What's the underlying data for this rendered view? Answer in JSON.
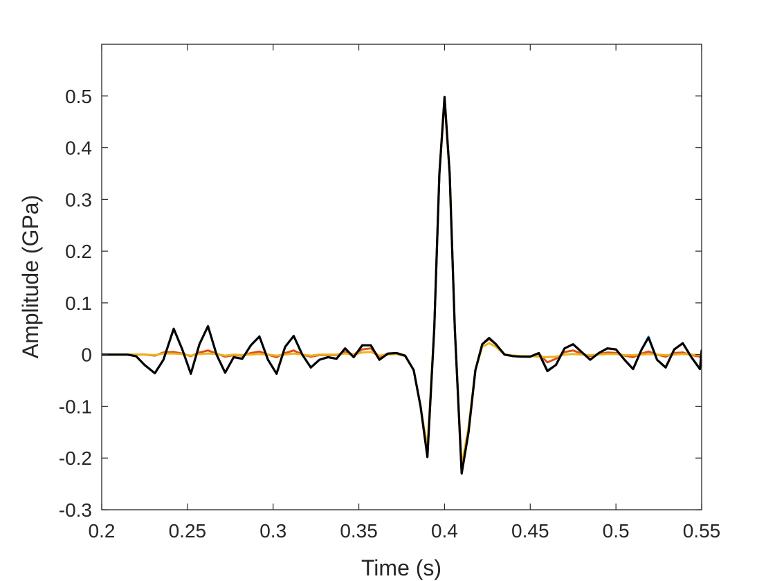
{
  "chart_data": {
    "type": "line",
    "title": "",
    "xlabel": "Time (s)",
    "ylabel": "Amplitude (GPa)",
    "xlim": [
      0.2,
      0.55
    ],
    "ylim": [
      -0.3,
      0.6
    ],
    "xticks": [
      0.2,
      0.25,
      0.3,
      0.35,
      0.4,
      0.45,
      0.5,
      0.55
    ],
    "xtick_labels": [
      "0.2",
      "0.25",
      "0.3",
      "0.35",
      "0.4",
      "0.45",
      "0.5",
      "0.55"
    ],
    "yticks": [
      -0.3,
      -0.2,
      -0.1,
      0,
      0.1,
      0.2,
      0.3,
      0.4,
      0.5
    ],
    "ytick_labels": [
      "-0.3",
      "-0.2",
      "-0.1",
      "0",
      "0.1",
      "0.2",
      "0.3",
      "0.4",
      "0.5"
    ],
    "grid": false,
    "legend": "none",
    "series": [
      {
        "color": "#4DBEEE",
        "x": [
          0.2,
          0.215,
          0.22,
          0.225,
          0.231,
          0.236,
          0.242,
          0.247,
          0.252,
          0.257,
          0.262,
          0.267,
          0.272,
          0.277,
          0.282,
          0.287,
          0.292,
          0.297,
          0.302,
          0.307,
          0.312,
          0.317,
          0.322,
          0.327,
          0.332,
          0.337,
          0.342,
          0.347,
          0.352,
          0.357,
          0.362,
          0.367,
          0.372,
          0.377,
          0.382,
          0.386,
          0.39,
          0.394,
          0.397,
          0.4,
          0.403,
          0.406,
          0.41,
          0.414,
          0.418,
          0.422,
          0.426,
          0.43,
          0.435,
          0.44,
          0.445,
          0.45,
          0.455,
          0.46,
          0.465,
          0.47,
          0.475,
          0.48,
          0.485,
          0.49,
          0.495,
          0.5,
          0.505,
          0.51,
          0.515,
          0.519,
          0.524,
          0.529,
          0.534,
          0.539,
          0.544,
          0.549,
          0.55
        ],
        "y": [
          0,
          0,
          -0.003,
          -0.02,
          -0.036,
          -0.01,
          0.05,
          0.01,
          -0.037,
          0.02,
          0.055,
          0.0,
          -0.035,
          -0.005,
          -0.008,
          0.018,
          0.035,
          -0.01,
          -0.037,
          0.015,
          0.036,
          0.0,
          -0.025,
          -0.01,
          -0.005,
          -0.008,
          0.012,
          -0.005,
          0.018,
          0.018,
          -0.01,
          0.002,
          0.003,
          -0.002,
          -0.03,
          -0.1,
          -0.195,
          0.05,
          0.35,
          0.497,
          0.35,
          0.05,
          -0.228,
          -0.15,
          -0.03,
          0.02,
          0.032,
          0.02,
          0.0,
          -0.003,
          -0.004,
          -0.004,
          0.003,
          -0.03,
          -0.02,
          0.012,
          0.02,
          0.005,
          -0.01,
          0.003,
          0.012,
          0.01,
          -0.01,
          -0.028,
          0.01,
          0.035,
          -0.01,
          -0.025,
          0.01,
          0.022,
          -0.005,
          -0.028,
          0.008
        ]
      },
      {
        "color": "#D95319",
        "x": [
          0.2,
          0.215,
          0.22,
          0.225,
          0.231,
          0.236,
          0.242,
          0.247,
          0.252,
          0.257,
          0.262,
          0.267,
          0.272,
          0.277,
          0.282,
          0.287,
          0.292,
          0.297,
          0.302,
          0.307,
          0.312,
          0.317,
          0.322,
          0.327,
          0.332,
          0.337,
          0.342,
          0.347,
          0.352,
          0.357,
          0.362,
          0.367,
          0.372,
          0.377,
          0.382,
          0.386,
          0.39,
          0.394,
          0.397,
          0.4,
          0.403,
          0.406,
          0.41,
          0.414,
          0.418,
          0.422,
          0.426,
          0.43,
          0.435,
          0.44,
          0.445,
          0.45,
          0.455,
          0.46,
          0.465,
          0.47,
          0.475,
          0.48,
          0.485,
          0.49,
          0.495,
          0.5,
          0.505,
          0.51,
          0.515,
          0.519,
          0.524,
          0.529,
          0.534,
          0.539,
          0.544,
          0.549,
          0.55
        ],
        "y": [
          0,
          0,
          0,
          0,
          -0.002,
          0.004,
          0.005,
          0.002,
          -0.003,
          0.004,
          0.008,
          0.002,
          -0.004,
          -0.001,
          -0.002,
          0.003,
          0.006,
          0.0,
          -0.005,
          0.003,
          0.008,
          0.0,
          -0.004,
          -0.001,
          -0.001,
          -0.001,
          0.005,
          0.0,
          0.01,
          0.012,
          -0.004,
          0.002,
          0.002,
          -0.002,
          -0.03,
          -0.1,
          -0.19,
          0.05,
          0.35,
          0.495,
          0.35,
          0.05,
          -0.225,
          -0.15,
          -0.03,
          0.02,
          0.03,
          0.02,
          0.0,
          -0.002,
          -0.003,
          -0.004,
          0.002,
          -0.015,
          -0.008,
          0.005,
          0.008,
          0.002,
          -0.003,
          0.001,
          0.004,
          0.003,
          -0.002,
          -0.005,
          0.002,
          0.006,
          0.0,
          -0.004,
          0.003,
          0.004,
          -0.001,
          -0.004,
          0.001
        ]
      },
      {
        "color": "#EDB120",
        "x": [
          0.2,
          0.215,
          0.22,
          0.225,
          0.231,
          0.236,
          0.242,
          0.247,
          0.252,
          0.257,
          0.262,
          0.267,
          0.272,
          0.277,
          0.282,
          0.287,
          0.292,
          0.297,
          0.302,
          0.307,
          0.312,
          0.317,
          0.322,
          0.327,
          0.332,
          0.337,
          0.342,
          0.347,
          0.352,
          0.357,
          0.362,
          0.367,
          0.372,
          0.377,
          0.382,
          0.386,
          0.39,
          0.394,
          0.397,
          0.4,
          0.403,
          0.406,
          0.41,
          0.414,
          0.418,
          0.422,
          0.426,
          0.43,
          0.435,
          0.44,
          0.445,
          0.45,
          0.455,
          0.46,
          0.465,
          0.47,
          0.475,
          0.48,
          0.485,
          0.49,
          0.495,
          0.5,
          0.505,
          0.51,
          0.515,
          0.519,
          0.524,
          0.529,
          0.534,
          0.539,
          0.544,
          0.549,
          0.55
        ],
        "y": [
          0,
          0,
          0,
          0,
          -0.001,
          0.002,
          0.002,
          0.001,
          -0.002,
          0.001,
          0.002,
          0.001,
          -0.002,
          0.0,
          -0.001,
          0.0,
          0.001,
          0.0,
          -0.002,
          0.0,
          0.002,
          0.0,
          -0.002,
          0.0,
          0.0,
          0.0,
          0.002,
          0.0,
          0.004,
          0.005,
          -0.002,
          0.0,
          0.001,
          -0.003,
          -0.03,
          -0.1,
          -0.18,
          0.05,
          0.35,
          0.49,
          0.35,
          0.05,
          -0.215,
          -0.14,
          -0.03,
          0.015,
          0.022,
          0.015,
          0.0,
          -0.002,
          -0.003,
          -0.003,
          -0.004,
          -0.005,
          -0.004,
          0.0,
          0.001,
          0.0,
          -0.001,
          0.0,
          0.001,
          0.001,
          -0.001,
          -0.001,
          0.0,
          0.001,
          0.0,
          -0.001,
          0.0,
          0.001,
          0.0,
          -0.001,
          0.0
        ]
      },
      {
        "color": "#000000",
        "x": [
          0.2,
          0.215,
          0.22,
          0.225,
          0.231,
          0.236,
          0.242,
          0.247,
          0.252,
          0.257,
          0.262,
          0.267,
          0.272,
          0.277,
          0.282,
          0.287,
          0.292,
          0.297,
          0.302,
          0.307,
          0.312,
          0.317,
          0.322,
          0.327,
          0.332,
          0.337,
          0.342,
          0.347,
          0.352,
          0.357,
          0.362,
          0.367,
          0.372,
          0.377,
          0.382,
          0.386,
          0.39,
          0.394,
          0.397,
          0.4,
          0.403,
          0.406,
          0.41,
          0.414,
          0.418,
          0.422,
          0.426,
          0.43,
          0.435,
          0.44,
          0.445,
          0.45,
          0.455,
          0.46,
          0.465,
          0.47,
          0.475,
          0.48,
          0.485,
          0.49,
          0.495,
          0.5,
          0.505,
          0.51,
          0.515,
          0.519,
          0.524,
          0.529,
          0.534,
          0.539,
          0.544,
          0.549,
          0.55
        ],
        "y": [
          0,
          0,
          -0.003,
          -0.02,
          -0.036,
          -0.01,
          0.05,
          0.01,
          -0.037,
          0.02,
          0.055,
          0.0,
          -0.035,
          -0.005,
          -0.008,
          0.018,
          0.035,
          -0.01,
          -0.037,
          0.015,
          0.036,
          0.0,
          -0.025,
          -0.01,
          -0.005,
          -0.008,
          0.012,
          -0.005,
          0.018,
          0.018,
          -0.01,
          0.002,
          0.003,
          -0.002,
          -0.03,
          -0.1,
          -0.198,
          0.05,
          0.35,
          0.498,
          0.35,
          0.05,
          -0.23,
          -0.15,
          -0.03,
          0.02,
          0.032,
          0.02,
          0.0,
          -0.003,
          -0.004,
          -0.004,
          0.003,
          -0.032,
          -0.02,
          0.012,
          0.02,
          0.005,
          -0.01,
          0.003,
          0.012,
          0.01,
          -0.01,
          -0.028,
          0.01,
          0.033,
          -0.01,
          -0.025,
          0.01,
          0.022,
          -0.005,
          -0.028,
          0.008
        ]
      }
    ]
  }
}
